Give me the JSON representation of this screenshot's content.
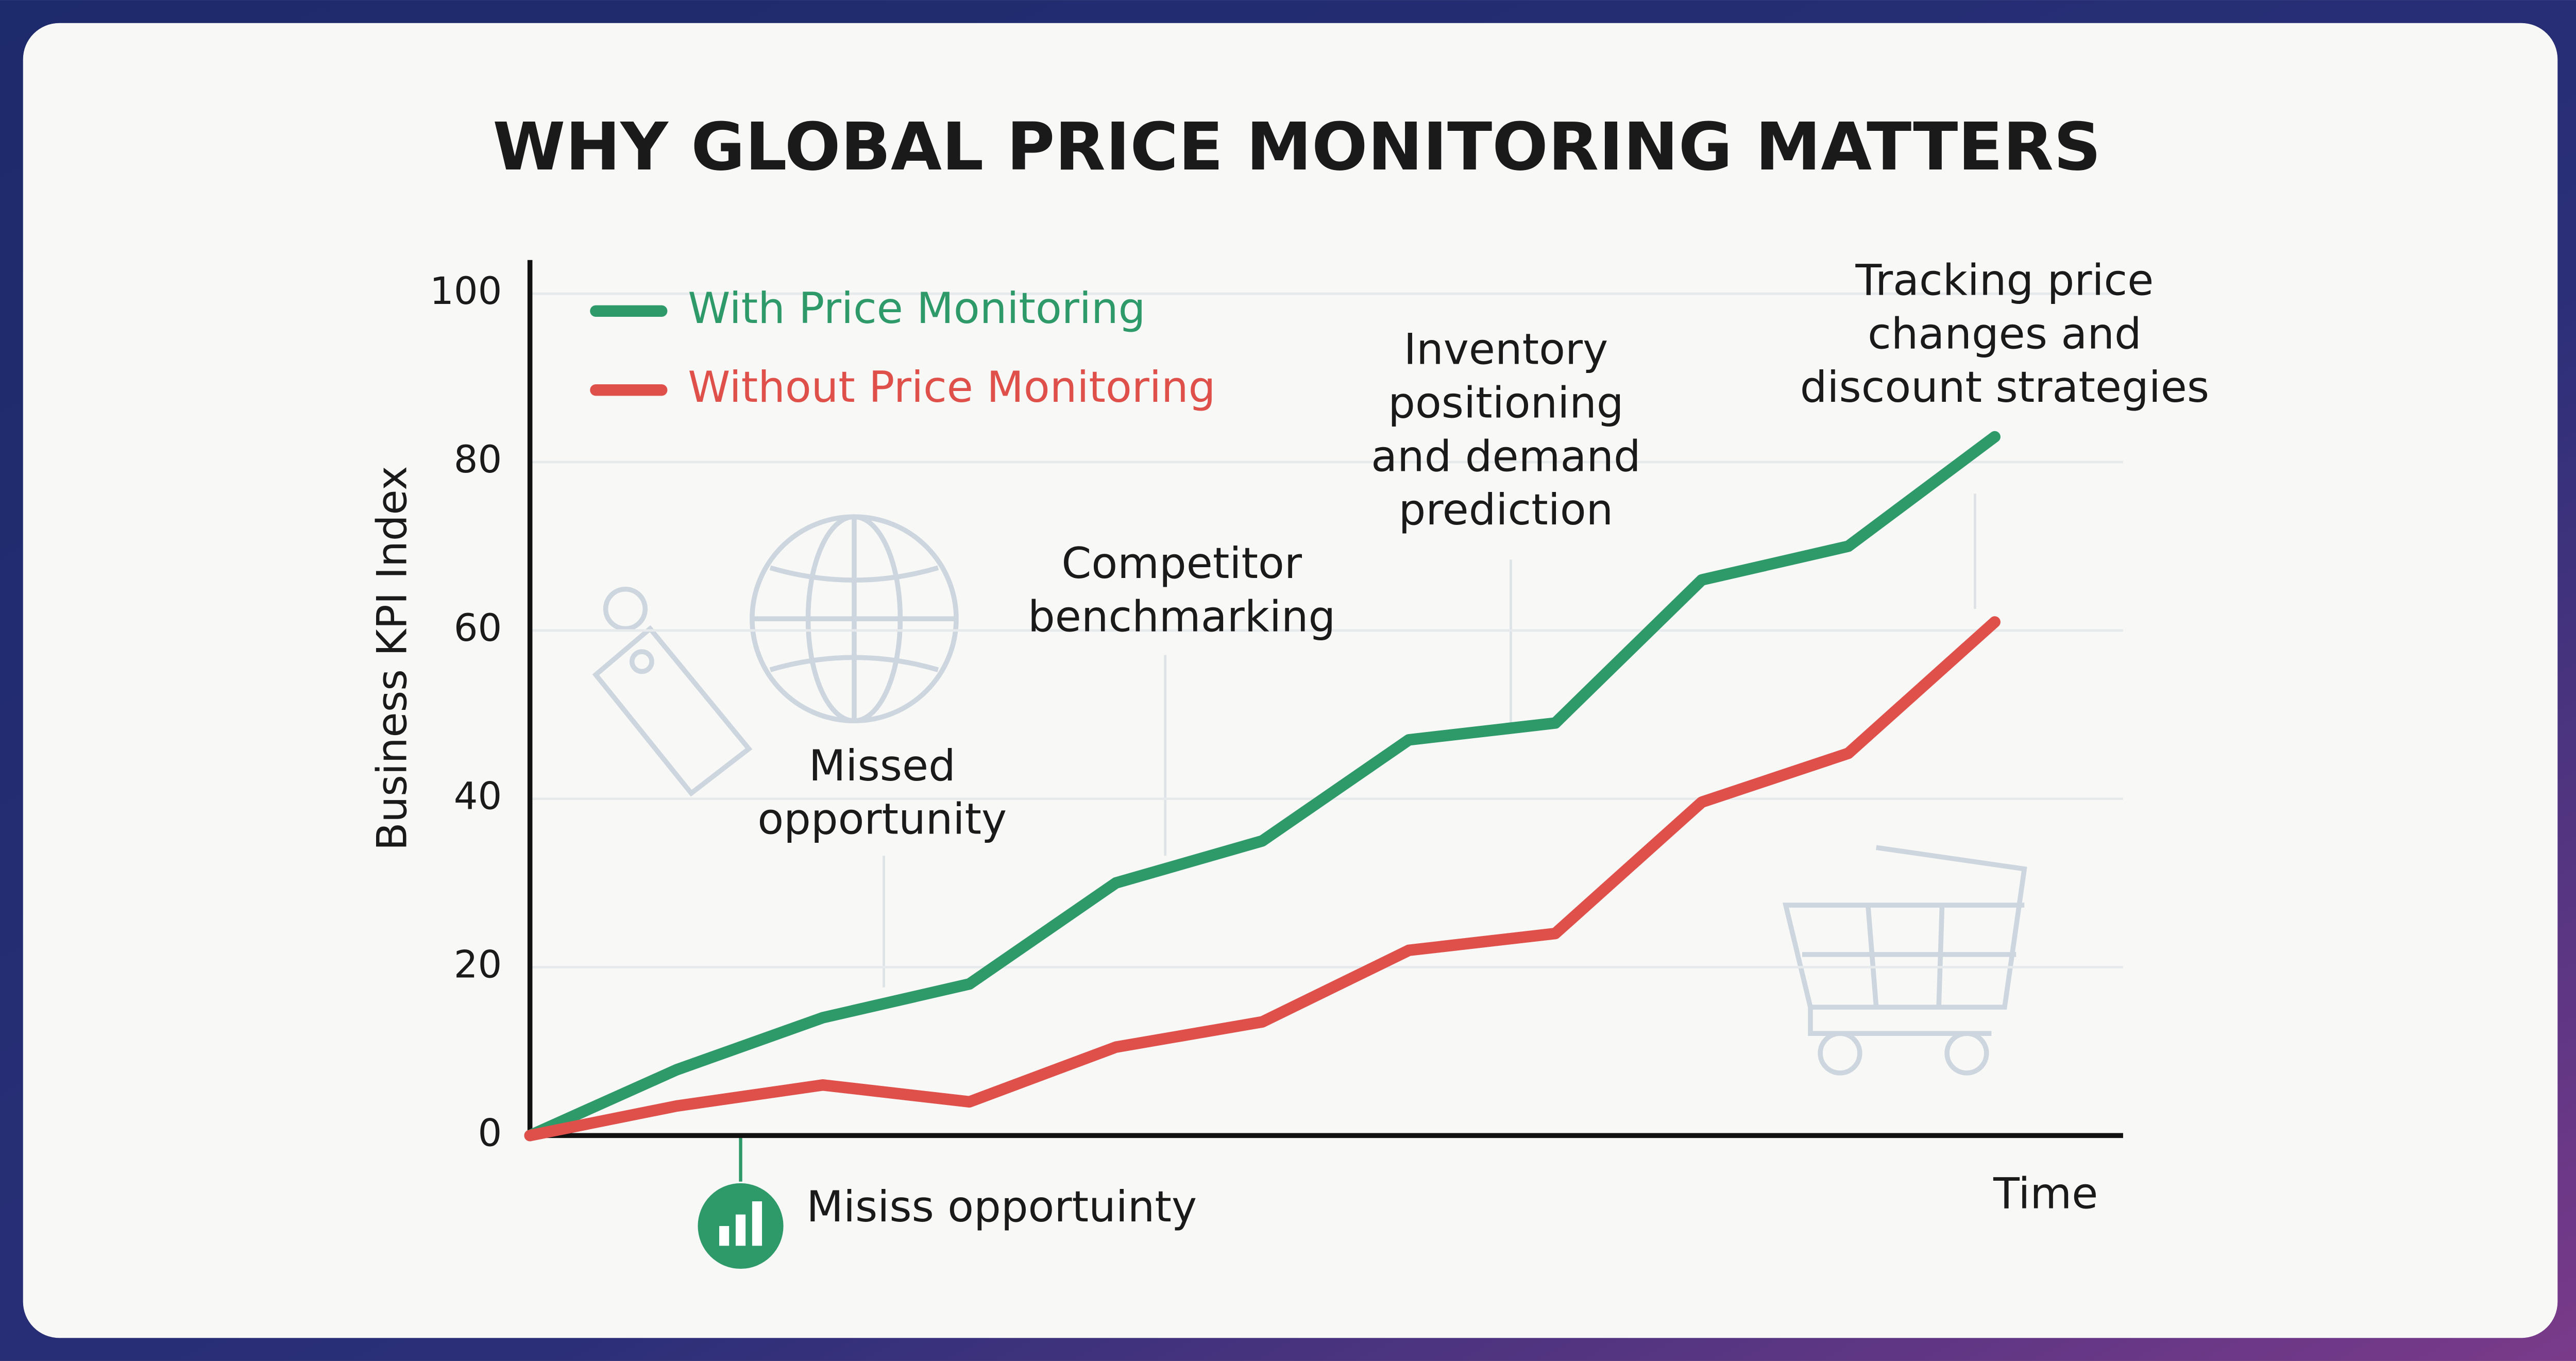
{
  "chart_data": {
    "type": "line",
    "title": "WHY GLOBAL PRICE MONITORING MATTERS",
    "ylabel": "Business KPI Index",
    "xlabel": "Time",
    "categories": [
      null,
      null,
      null,
      null,
      null,
      null,
      null,
      null,
      null,
      null,
      null
    ],
    "series": [
      {
        "name": "With Price Monitoring",
        "color": "#2e9a6a",
        "values": [
          0,
          7.8,
          14,
          18,
          30,
          35,
          47,
          49,
          66,
          70,
          83
        ]
      },
      {
        "name": "Without Price Monitoring",
        "color": "#e0504a",
        "values": [
          0,
          3.5,
          6,
          4,
          10.5,
          13.5,
          22,
          24,
          39.6,
          45.4,
          61
        ]
      }
    ],
    "ylim": [
      0,
      104
    ],
    "yticks": [
      0,
      20,
      40,
      60,
      80,
      100
    ],
    "grid": true,
    "legend": "upper-left",
    "annotations": [
      [
        "Missed",
        "opportunity"
      ],
      [
        "Competitor",
        "benchmarking"
      ],
      [
        "Inventory",
        "positioning",
        "and demand",
        "prediction"
      ],
      [
        "Tracking price",
        "changes and",
        "discount strategies"
      ]
    ],
    "footnote": "Misiss opportuinty"
  }
}
